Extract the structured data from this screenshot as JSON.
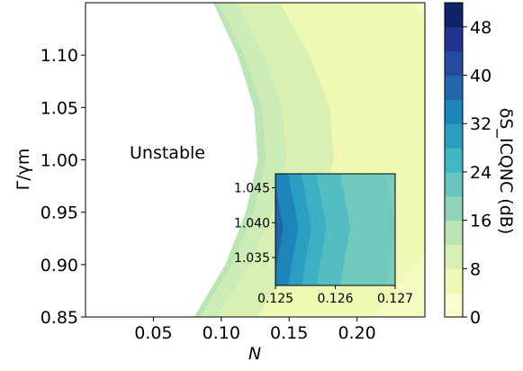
{
  "chart_data": {
    "type": "contour",
    "annotation": "Unstable",
    "main": {
      "xlabel": "N",
      "ylabel": "Γ/γm",
      "xlim": [
        0.0,
        0.25
      ],
      "ylim": [
        0.85,
        1.15
      ],
      "xticks": [
        0.05,
        0.1,
        0.15,
        0.2
      ],
      "xtick_labels": [
        "0.05",
        "0.10",
        "0.15",
        "0.20"
      ],
      "yticks": [
        0.85,
        0.9,
        0.95,
        1.0,
        1.05,
        1.1
      ],
      "ytick_labels": [
        "0.85",
        "0.90",
        "0.95",
        "1.00",
        "1.05",
        "1.10"
      ],
      "stability_boundary": {
        "y": [
          0.85,
          0.9,
          0.95,
          1.0,
          1.05,
          1.1,
          1.15
        ],
        "N": [
          0.08,
          0.103,
          0.118,
          0.127,
          0.124,
          0.112,
          0.094
        ]
      },
      "contour_bands": [
        {
          "level_upper": 8,
          "N_offset": [
            0.085,
            0.09,
            0.095,
            0.1,
            0.1,
            0.1,
            0.098
          ]
        },
        {
          "level_upper": 12,
          "N_offset": [
            0.03,
            0.032,
            0.034,
            0.035,
            0.035,
            0.034,
            0.032
          ]
        },
        {
          "level_upper": 14,
          "N_offset": [
            0.012,
            0.013,
            0.014,
            0.015,
            0.015,
            0.014,
            0.013
          ]
        },
        {
          "level_upper": 16,
          "N_offset": [
            0.004,
            0.005,
            0.006,
            0.006,
            0.006,
            0.005,
            0.004
          ]
        }
      ]
    },
    "inset": {
      "xlim": [
        0.125,
        0.127
      ],
      "ylim": [
        1.031,
        1.047
      ],
      "xticks": [
        0.125,
        0.126,
        0.127
      ],
      "xtick_labels": [
        "0.125",
        "0.126",
        "0.127"
      ],
      "yticks": [
        1.035,
        1.04,
        1.045
      ],
      "ytick_labels": [
        "1.035",
        "1.040",
        "1.045"
      ],
      "center_y": 1.0393,
      "bands": [
        {
          "level": 38,
          "tip": 0.12513,
          "spread": 3e-05
        },
        {
          "level": 34,
          "tip": 0.12538,
          "spread": 0.00012
        },
        {
          "level": 30,
          "tip": 0.1256,
          "spread": 0.00018
        },
        {
          "level": 27,
          "tip": 0.12585,
          "spread": 0.0002
        },
        {
          "level": 24,
          "tip": 0.12625,
          "spread": 0.00015
        },
        {
          "level": 21,
          "tip": 0.127,
          "spread": 0.0001
        }
      ],
      "background_level": 20
    },
    "colorbar": {
      "label": "δS_ICQNC (dB)",
      "min": 0,
      "max": 52,
      "ticks": [
        0,
        8,
        16,
        24,
        32,
        40,
        48
      ],
      "tick_labels": [
        "0",
        "8",
        "16",
        "24",
        "32",
        "40",
        "48"
      ],
      "colormap": "YlGnBu"
    }
  }
}
